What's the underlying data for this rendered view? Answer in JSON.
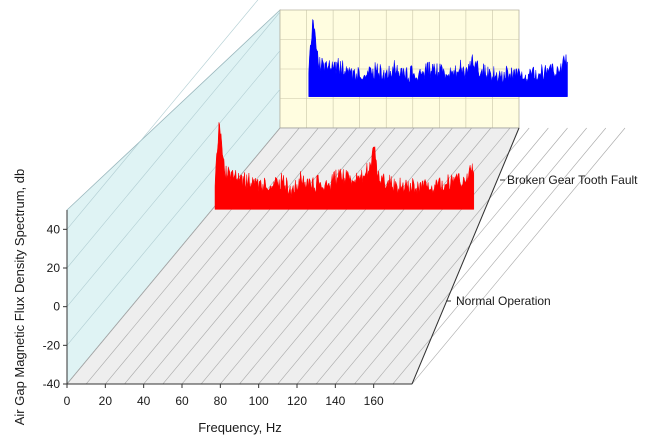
{
  "chart_data": {
    "type": "area",
    "projection": "3d-waterfall",
    "xlabel": "Frequency, Hz",
    "ylabel": "Air Gap Magnetic Flux Density Spectrum, db",
    "xlim": [
      0,
      180
    ],
    "ylim": [
      -40,
      50
    ],
    "x_ticks": [
      0,
      20,
      40,
      60,
      80,
      100,
      120,
      140,
      160
    ],
    "y_ticks": [
      -40,
      -20,
      0,
      20,
      40
    ],
    "x_range_plotted": [
      35,
      170
    ],
    "baseline": 0,
    "series": [
      {
        "name": "Normal Operation",
        "color": "#ff0000",
        "x": [
          35,
          37,
          40,
          45,
          50,
          55,
          60,
          65,
          70,
          75,
          80,
          85,
          90,
          95,
          100,
          105,
          110,
          115,
          118,
          120,
          125,
          130,
          135,
          140,
          145,
          150,
          155,
          160,
          165,
          170
        ],
        "values": [
          12,
          45,
          20,
          17,
          15,
          14,
          13,
          12,
          15,
          10,
          16,
          12,
          14,
          13,
          18,
          15,
          17,
          20,
          32,
          18,
          14,
          12,
          13,
          11,
          14,
          12,
          13,
          15,
          16,
          20
        ]
      },
      {
        "name": "Broken Gear Tooth Fault",
        "color": "#0000ff",
        "x": [
          35,
          37,
          40,
          45,
          50,
          55,
          60,
          65,
          70,
          75,
          80,
          85,
          90,
          95,
          100,
          105,
          110,
          115,
          118,
          120,
          125,
          130,
          135,
          140,
          145,
          150,
          155,
          160,
          165,
          170
        ],
        "values": [
          12,
          40,
          18,
          15,
          16,
          13,
          12,
          11,
          14,
          12,
          15,
          11,
          12,
          13,
          14,
          12,
          13,
          15,
          12,
          20,
          13,
          12,
          11,
          12,
          13,
          11,
          12,
          13,
          15,
          18
        ]
      }
    ]
  }
}
